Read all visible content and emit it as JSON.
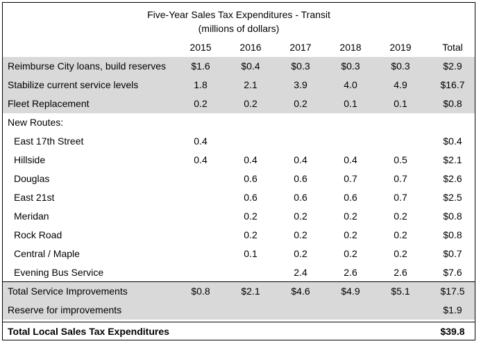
{
  "title": "Five-Year Sales Tax Expenditures - Transit",
  "subtitle": "(millions of dollars)",
  "columns": [
    "2015",
    "2016",
    "2017",
    "2018",
    "2019",
    "Total"
  ],
  "rows": [
    {
      "label": "Reimburse City loans, build reserves",
      "values": [
        "$1.6",
        "$0.4",
        "$0.3",
        "$0.3",
        "$0.3",
        "$2.9"
      ],
      "indent": false,
      "shade": true
    },
    {
      "label": "Stabilize current service levels",
      "values": [
        "1.8",
        "2.1",
        "3.9",
        "4.0",
        "4.9",
        "$16.7"
      ],
      "indent": false,
      "shade": true
    },
    {
      "label": "Fleet Replacement",
      "values": [
        "0.2",
        "0.2",
        "0.2",
        "0.1",
        "0.1",
        "$0.8"
      ],
      "indent": false,
      "shade": true
    },
    {
      "label": "New Routes:",
      "values": [
        "",
        "",
        "",
        "",
        "",
        ""
      ],
      "indent": false,
      "shade": false
    },
    {
      "label": "East 17th Street",
      "values": [
        "0.4",
        "",
        "",
        "",
        "",
        "$0.4"
      ],
      "indent": true,
      "shade": false
    },
    {
      "label": "Hillside",
      "values": [
        "0.4",
        "0.4",
        "0.4",
        "0.4",
        "0.5",
        "$2.1"
      ],
      "indent": true,
      "shade": false
    },
    {
      "label": "Douglas",
      "values": [
        "",
        "0.6",
        "0.6",
        "0.7",
        "0.7",
        "$2.6"
      ],
      "indent": true,
      "shade": false
    },
    {
      "label": "East 21st",
      "values": [
        "",
        "0.6",
        "0.6",
        "0.6",
        "0.7",
        "$2.5"
      ],
      "indent": true,
      "shade": false
    },
    {
      "label": "Meridan",
      "values": [
        "",
        "0.2",
        "0.2",
        "0.2",
        "0.2",
        "$0.8"
      ],
      "indent": true,
      "shade": false
    },
    {
      "label": "Rock Road",
      "values": [
        "",
        "0.2",
        "0.2",
        "0.2",
        "0.2",
        "$0.8"
      ],
      "indent": true,
      "shade": false
    },
    {
      "label": "Central / Maple",
      "values": [
        "",
        "0.1",
        "0.2",
        "0.2",
        "0.2",
        "$0.7"
      ],
      "indent": true,
      "shade": false
    },
    {
      "label": "Evening Bus Service",
      "values": [
        "",
        "",
        "2.4",
        "2.6",
        "2.6",
        "$7.6"
      ],
      "indent": true,
      "shade": false
    },
    {
      "label": "Total Service Improvements",
      "values": [
        "$0.8",
        "$2.1",
        "$4.6",
        "$4.9",
        "$5.1",
        "$17.5"
      ],
      "indent": false,
      "shade": true
    },
    {
      "label": "Reserve for improvements",
      "values": [
        "",
        "",
        "",
        "",
        "",
        "$1.9"
      ],
      "indent": false,
      "shade": true
    },
    {
      "label": "Total Local Sales Tax Expenditures",
      "values": [
        "",
        "",
        "",
        "",
        "",
        "$39.8"
      ],
      "indent": false,
      "shade": false,
      "bold": true
    }
  ]
}
